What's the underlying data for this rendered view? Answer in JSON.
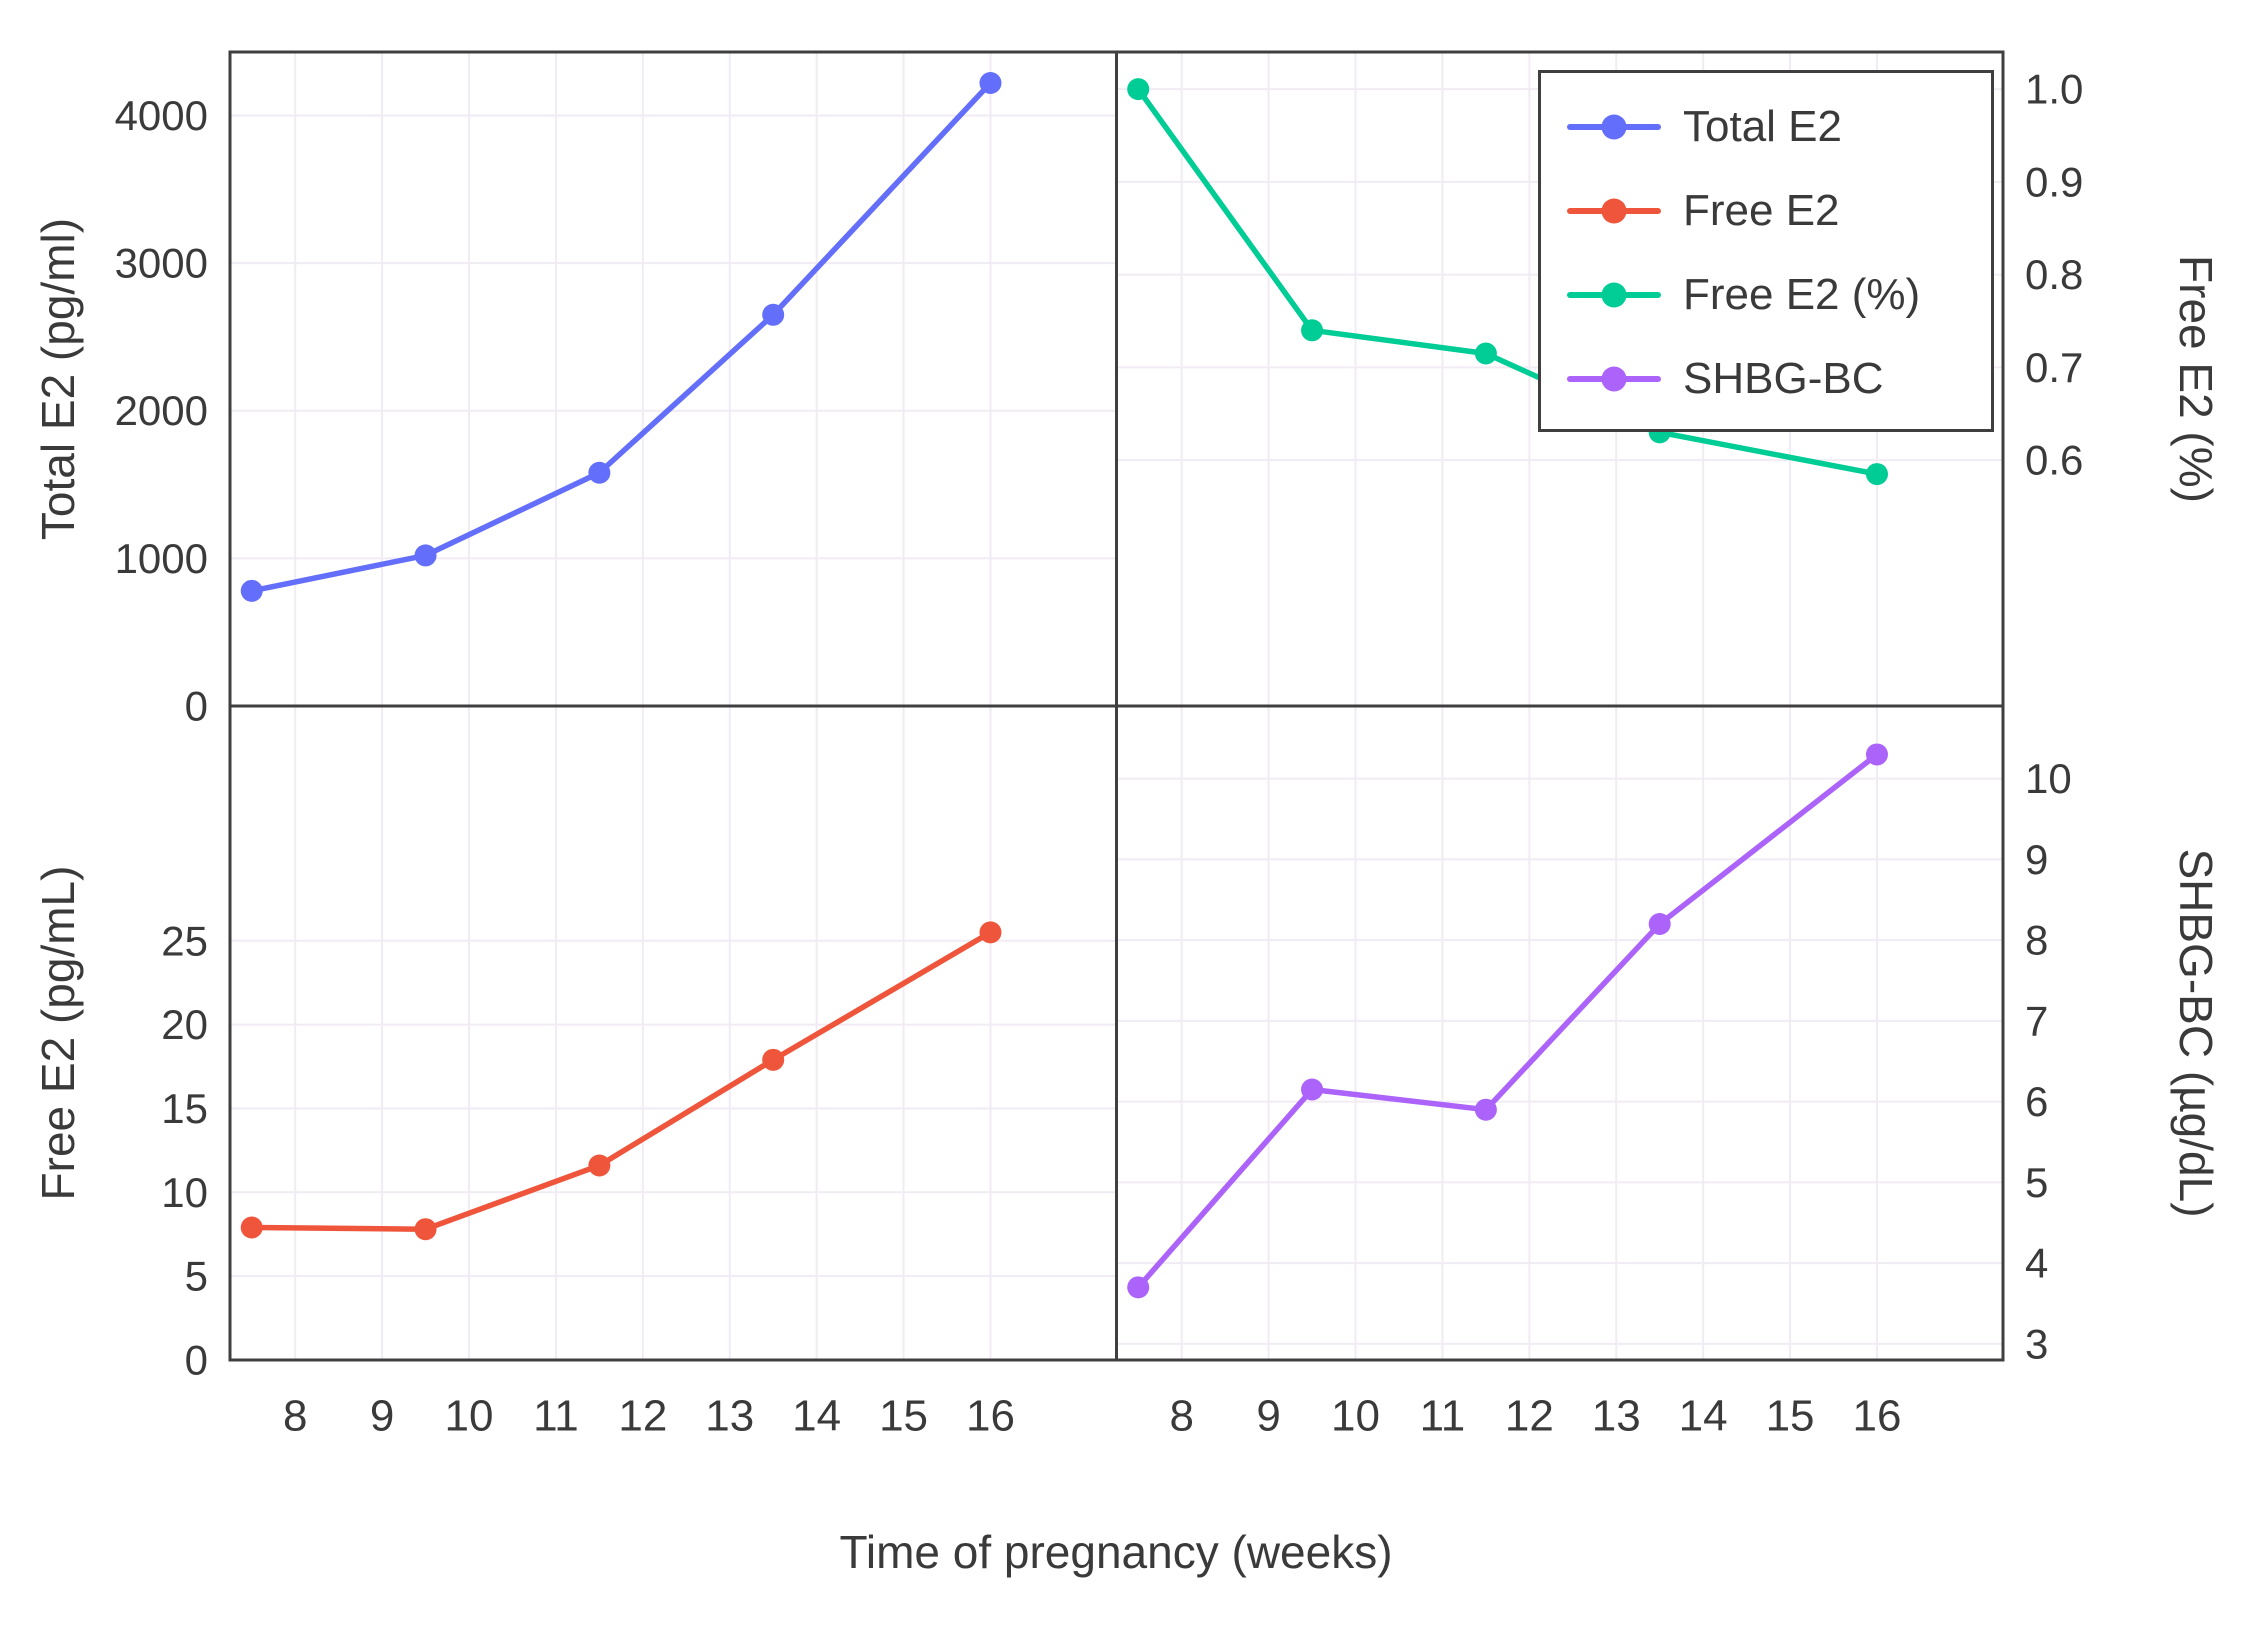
{
  "figure": {
    "xlabel": "Time of pregnancy (weeks)",
    "x_ticks": [
      8,
      9,
      10,
      11,
      12,
      13,
      14,
      15,
      16
    ],
    "xlim": [
      7.25,
      17.45
    ],
    "axis_color": "#3f3f3f",
    "grid_color": "#f1ebf4",
    "text_color": "#3a3a3a",
    "background": "#ffffff"
  },
  "legend": {
    "entries": [
      {
        "label": "Total E2",
        "color": "#636efa"
      },
      {
        "label": "Free E2",
        "color": "#ef553b"
      },
      {
        "label": "Free E2 (%)",
        "color": "#00cc96"
      },
      {
        "label": "SHBG-BC",
        "color": "#ab63fa"
      }
    ]
  },
  "chart_data": [
    {
      "type": "line",
      "name": "Total E2",
      "panel": "top-left",
      "axis_side": "left",
      "ylabel": "Total E2 (pg/ml)",
      "color": "#636efa",
      "x": [
        7.5,
        9.5,
        11.5,
        13.5,
        16
      ],
      "y": [
        780,
        1020,
        1580,
        2650,
        4220
      ],
      "ylim": [
        0,
        4430
      ],
      "yticks": [
        0,
        1000,
        2000,
        3000,
        4000
      ],
      "tick_decimals": 0
    },
    {
      "type": "line",
      "name": "Free E2 (%)",
      "panel": "top-right",
      "axis_side": "right",
      "ylabel": "Free E2 (%)",
      "color": "#00cc96",
      "x": [
        7.5,
        9.5,
        11.5,
        13.5,
        16
      ],
      "y": [
        1.0,
        0.74,
        0.715,
        0.63,
        0.585
      ],
      "ylim": [
        0.335,
        1.04
      ],
      "yticks": [
        0.6,
        0.7,
        0.8,
        0.9,
        1.0
      ],
      "tick_decimals": 1
    },
    {
      "type": "line",
      "name": "Free E2",
      "panel": "bottom-left",
      "axis_side": "left",
      "ylabel": "Free E2 (pg/mL)",
      "color": "#ef553b",
      "x": [
        7.5,
        9.5,
        11.5,
        13.5,
        16
      ],
      "y": [
        7.9,
        7.8,
        11.6,
        17.9,
        25.5
      ],
      "ylim": [
        0,
        39
      ],
      "yticks": [
        0,
        5,
        10,
        15,
        20,
        25
      ],
      "tick_decimals": 0
    },
    {
      "type": "line",
      "name": "SHBG-BC",
      "panel": "bottom-right",
      "axis_side": "right",
      "ylabel": "SHBG-BC (µg/dL)",
      "color": "#ab63fa",
      "x": [
        7.5,
        9.5,
        11.5,
        13.5,
        16
      ],
      "y": [
        3.7,
        6.15,
        5.9,
        8.2,
        10.3
      ],
      "ylim": [
        2.8,
        10.9
      ],
      "yticks": [
        3,
        4,
        5,
        6,
        7,
        8,
        9,
        10
      ],
      "tick_decimals": 0
    }
  ]
}
